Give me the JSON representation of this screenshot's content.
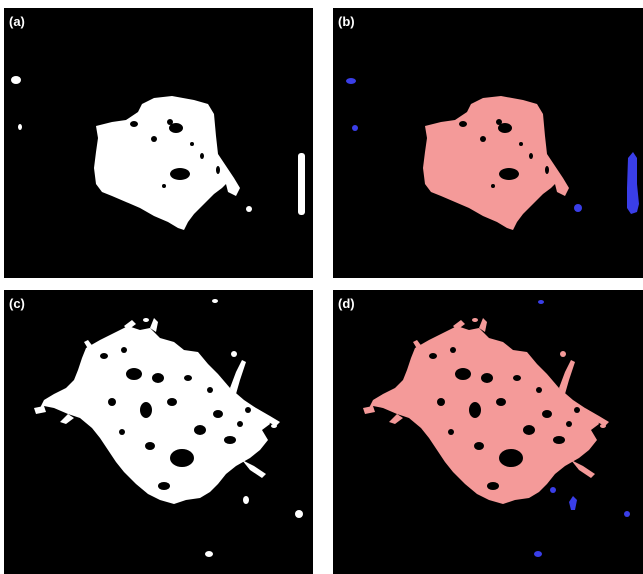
{
  "panels": {
    "a": {
      "label": "(a)",
      "style": "binary-mask",
      "foreground_color": "#ffffff"
    },
    "b": {
      "label": "(b)",
      "style": "labeled-regions",
      "main_region_color": "#f49a99",
      "small_region_color": "#3a3ee8"
    },
    "c": {
      "label": "(c)",
      "style": "binary-mask",
      "foreground_color": "#ffffff"
    },
    "d": {
      "label": "(d)",
      "style": "labeled-regions",
      "main_region_color": "#f49a99",
      "small_region_color": "#3a3ee8"
    }
  },
  "colors": {
    "background": "#000000",
    "page": "#ffffff"
  }
}
